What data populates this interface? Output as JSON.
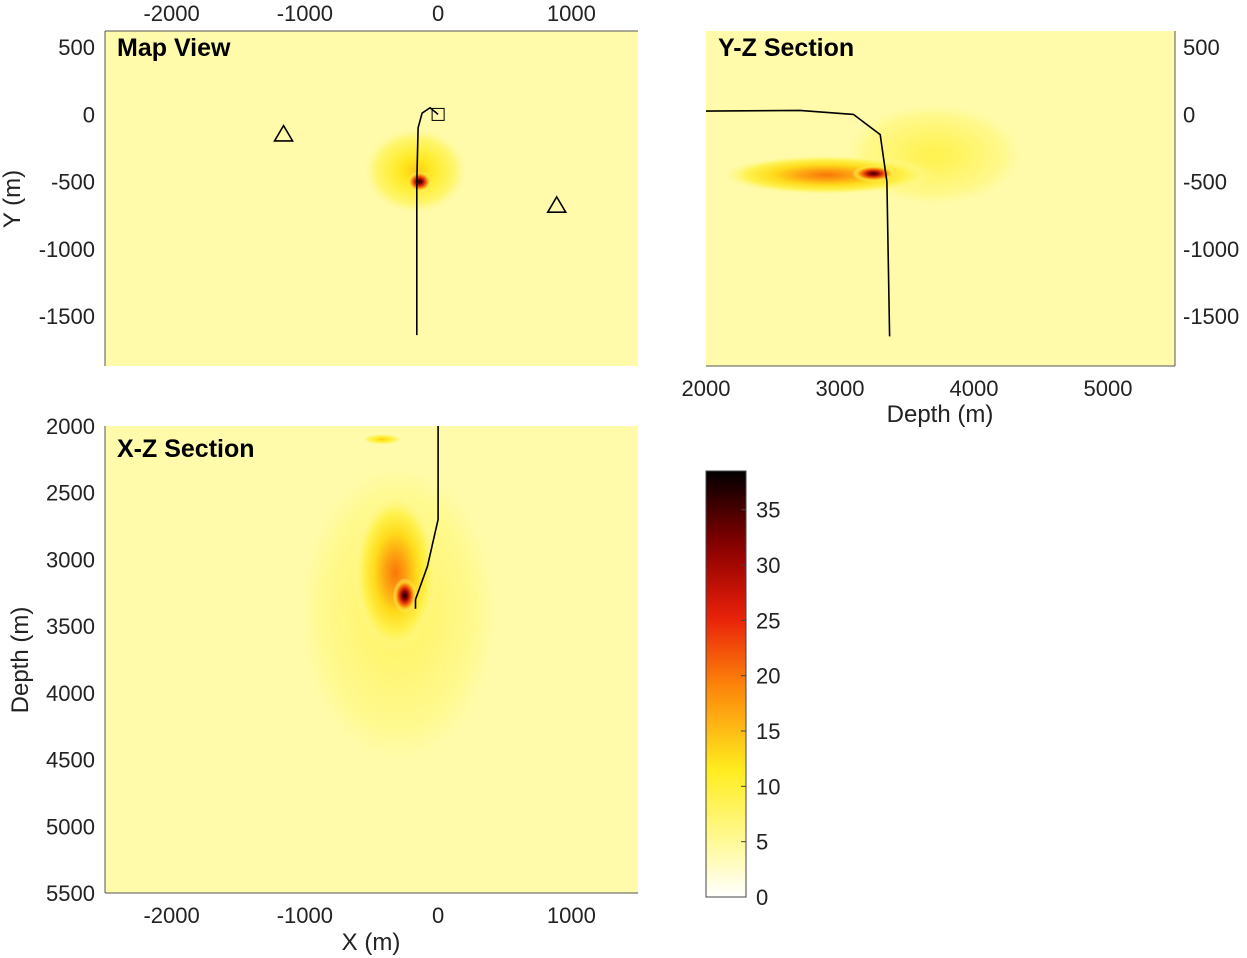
{
  "chart_data": [
    {
      "id": "map-view",
      "type": "heatmap",
      "title": "Map View",
      "xlabel": "",
      "ylabel": "Y (m)",
      "x_ticks": [
        "-2000",
        "-1000",
        "0",
        "1000"
      ],
      "x_tick_values": [
        -2000,
        -1000,
        0,
        1000
      ],
      "x_ticks_position": "top",
      "y_ticks": [
        "500",
        "0",
        "-500",
        "-1000",
        "-1500"
      ],
      "y_tick_values": [
        500,
        0,
        -500,
        -1000,
        -1500
      ],
      "xlim": [
        -2500,
        1500
      ],
      "ylim": [
        -1870,
        620
      ],
      "hotspots": [
        {
          "x": -140,
          "y": -500,
          "rx": 90,
          "ry": 75,
          "intensity": 38
        },
        {
          "x": -170,
          "y": -420,
          "rx": 400,
          "ry": 330,
          "intensity": 14
        }
      ],
      "well_path": [
        [
          -160,
          -1640
        ],
        [
          -160,
          -500
        ],
        [
          -150,
          -100
        ],
        [
          -120,
          10
        ],
        [
          -60,
          50
        ],
        [
          0,
          0
        ]
      ],
      "square_marker": {
        "x": 0,
        "y": 0
      },
      "triangle_markers": [
        {
          "x": -1160,
          "y": -150
        },
        {
          "x": 890,
          "y": -680
        }
      ]
    },
    {
      "id": "y-z-section",
      "type": "heatmap",
      "title": "Y-Z Section",
      "xlabel": "Depth (m)",
      "ylabel": "",
      "x_ticks": [
        "2000",
        "3000",
        "4000",
        "5000"
      ],
      "x_tick_values": [
        2000,
        3000,
        4000,
        5000
      ],
      "y_ticks": [
        "500",
        "0",
        "-500",
        "-1000",
        "-1500"
      ],
      "y_tick_values": [
        500,
        0,
        -500,
        -1000,
        -1500
      ],
      "y_ticks_position": "right",
      "xlim": [
        2000,
        5500
      ],
      "ylim": [
        -1870,
        620
      ],
      "hotspots": [
        {
          "x": 3250,
          "y": -440,
          "rx": 160,
          "ry": 60,
          "intensity": 36
        },
        {
          "x": 2900,
          "y": -450,
          "rx": 800,
          "ry": 150,
          "intensity": 20
        },
        {
          "x": 3700,
          "y": -300,
          "rx": 700,
          "ry": 400,
          "intensity": 9
        }
      ],
      "well_path": [
        [
          2000,
          25
        ],
        [
          2700,
          30
        ],
        [
          3100,
          0
        ],
        [
          3300,
          -150
        ],
        [
          3350,
          -500
        ],
        [
          3370,
          -1650
        ]
      ]
    },
    {
      "id": "x-z-section",
      "type": "heatmap",
      "title": "X-Z Section",
      "xlabel": "X (m)",
      "ylabel": "Depth (m)",
      "x_ticks": [
        "-2000",
        "-1000",
        "0",
        "1000"
      ],
      "x_tick_values": [
        -2000,
        -1000,
        0,
        1000
      ],
      "y_ticks": [
        "2000",
        "2500",
        "3000",
        "3500",
        "4000",
        "4500",
        "5000",
        "5500"
      ],
      "y_tick_values": [
        2000,
        2500,
        3000,
        3500,
        4000,
        4500,
        5000,
        5500
      ],
      "xlim": [
        -2500,
        1500
      ],
      "ylim": [
        5500,
        2000
      ],
      "y_reversed": true,
      "hotspots": [
        {
          "x": -250,
          "y": 3270,
          "rx": 90,
          "ry": 130,
          "intensity": 38
        },
        {
          "x": -320,
          "y": 3100,
          "rx": 320,
          "ry": 600,
          "intensity": 20
        },
        {
          "x": -300,
          "y": 3400,
          "rx": 800,
          "ry": 1200,
          "intensity": 8
        },
        {
          "x": -420,
          "y": 2100,
          "rx": 150,
          "ry": 40,
          "intensity": 14
        }
      ],
      "well_path": [
        [
          0,
          2000
        ],
        [
          0,
          2700
        ],
        [
          -80,
          3050
        ],
        [
          -170,
          3300
        ],
        [
          -170,
          3370
        ]
      ]
    },
    {
      "id": "colorbar",
      "type": "colorbar",
      "colormap": "hot (reversed)",
      "range": [
        0,
        38.5
      ],
      "ticks": [
        "0",
        "5",
        "10",
        "15",
        "20",
        "25",
        "30",
        "35"
      ],
      "tick_values": [
        0,
        5,
        10,
        15,
        20,
        25,
        30,
        35
      ]
    }
  ]
}
